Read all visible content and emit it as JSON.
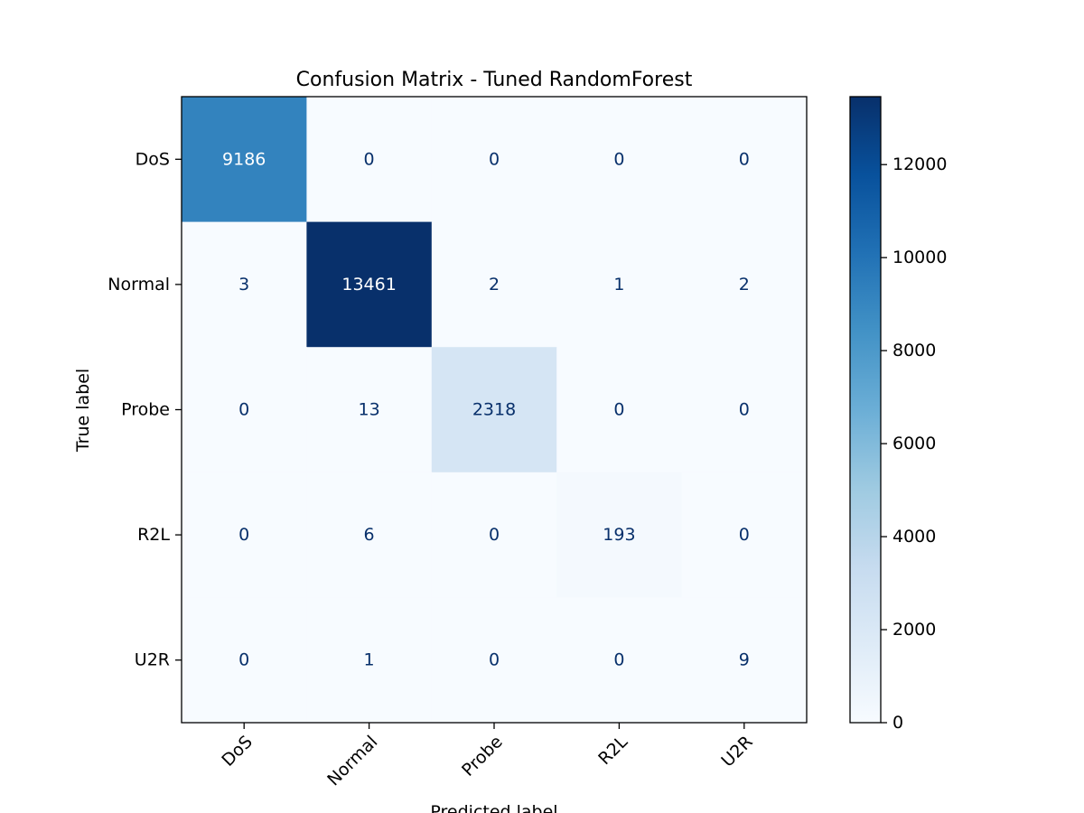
{
  "chart_data": {
    "type": "heatmap",
    "title": "Confusion Matrix - Tuned RandomForest",
    "xlabel": "Predicted label",
    "ylabel": "True label",
    "x_categories": [
      "DoS",
      "Normal",
      "Probe",
      "R2L",
      "U2R"
    ],
    "y_categories": [
      "DoS",
      "Normal",
      "Probe",
      "R2L",
      "U2R"
    ],
    "matrix": [
      [
        9186,
        0,
        0,
        0,
        0
      ],
      [
        3,
        13461,
        2,
        1,
        2
      ],
      [
        0,
        13,
        2318,
        0,
        0
      ],
      [
        0,
        6,
        0,
        193,
        0
      ],
      [
        0,
        1,
        0,
        0,
        9
      ]
    ],
    "colormap": "Blues",
    "colormap_stops": [
      "#f7fbff",
      "#deebf7",
      "#c6dbef",
      "#9ecae1",
      "#6baed6",
      "#4292c6",
      "#2171b5",
      "#08519c",
      "#08306b"
    ],
    "colorbar": {
      "range": [
        0,
        13461
      ],
      "ticks": [
        0,
        2000,
        4000,
        6000,
        8000,
        10000,
        12000
      ]
    },
    "text_colors": {
      "dark": "#08306b",
      "light": "#ffffff"
    }
  }
}
